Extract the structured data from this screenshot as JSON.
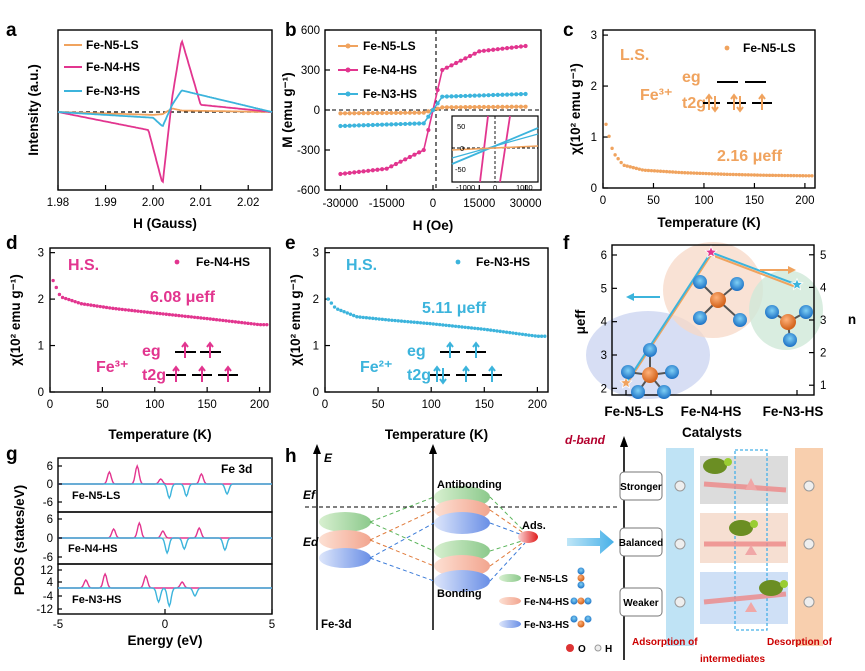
{
  "colors": {
    "ls": "#f0a35e",
    "n4": "#e2358f",
    "n3": "#3cb4dc",
    "dash": "#000000"
  },
  "panels": {
    "a": {
      "label": "a",
      "ylabel": "Intensity (a.u.)",
      "xlabel": "H (Gauss)",
      "xticks": [
        "1.98",
        "1.99",
        "2.00",
        "2.01",
        "2.02"
      ],
      "legend": [
        "Fe-N5-LS",
        "Fe-N4-HS",
        "Fe-N3-HS"
      ]
    },
    "b": {
      "label": "b",
      "ylabel": "M (emu g⁻¹)",
      "xlabel": "H (Oe)",
      "xticks": [
        "-30000",
        "-15000",
        "0",
        "15000",
        "30000"
      ],
      "yticks": [
        "600",
        "300",
        "0",
        "-300",
        "-600"
      ],
      "inset_xticks": [
        "-1000",
        "0",
        "1000"
      ],
      "inset_yticks": [
        "50",
        "0",
        "-50"
      ],
      "legend": [
        "Fe-N5-LS",
        "Fe-N4-HS",
        "Fe-N3-HS"
      ]
    },
    "c": {
      "label": "c",
      "spin": "L.S.",
      "legend": "Fe-N5-LS",
      "ion": "Fe³⁺",
      "eg": "eg",
      "t2g": "t2g",
      "ueff": "2.16 μeff",
      "ylabel": "χ(10² emu g⁻¹)",
      "xlabel": "Temperature (K)",
      "xticks": [
        "0",
        "50",
        "100",
        "150",
        "200"
      ],
      "yticks": [
        "3",
        "2",
        "1",
        "0"
      ]
    },
    "d": {
      "label": "d",
      "spin": "H.S.",
      "legend": "Fe-N4-HS",
      "ion": "Fe³⁺",
      "eg": "eg",
      "t2g": "t2g",
      "ueff": "6.08 μeff",
      "ylabel": "χ(10² emu g⁻¹)",
      "xlabel": "Temperature (K)",
      "xticks": [
        "0",
        "50",
        "100",
        "150",
        "200"
      ],
      "yticks": [
        "3",
        "2",
        "1",
        "0"
      ]
    },
    "e": {
      "label": "e",
      "spin": "H.S.",
      "legend": "Fe-N3-HS",
      "ion": "Fe²⁺",
      "eg": "eg",
      "t2g": "t2g",
      "ueff": "5.11 μeff",
      "ylabel": "χ(10² emu g⁻¹)",
      "xlabel": "Temperature (K)",
      "xticks": [
        "0",
        "50",
        "100",
        "150",
        "200"
      ],
      "yticks": [
        "3",
        "2",
        "1",
        "0"
      ]
    },
    "f": {
      "label": "f",
      "xlabel": "Catalysts",
      "ylabel_left": "μeff",
      "ylabel_right": "n",
      "categories": [
        "Fe-N5-LS",
        "Fe-N4-HS",
        "Fe-N3-HS"
      ],
      "yticks_left": [
        "6",
        "5",
        "4",
        "3",
        "2"
      ],
      "yticks_right": [
        "5",
        "4",
        "3",
        "2",
        "1"
      ]
    },
    "g": {
      "label": "g",
      "title": "Fe 3d",
      "ylabel": "PDOS (states/eV)",
      "xlabel": "Energy (eV)",
      "xticks": [
        "-5",
        "0",
        "5"
      ],
      "sub": [
        "Fe-N5-LS",
        "Fe-N4-HS",
        "Fe-N3-HS"
      ],
      "yticks1": [
        "6",
        "0",
        "-6"
      ],
      "yticks2": [
        "6",
        "0",
        "-6"
      ],
      "yticks3": [
        "12",
        "4",
        "-4",
        "-12"
      ]
    },
    "h": {
      "label": "h",
      "E": "E",
      "Ef": "Ef",
      "Ed": "Ed",
      "fe3d": "Fe-3d",
      "antibonding": "Antibonding",
      "bonding": "Bonding",
      "ads": "Ads.",
      "legend": [
        "Fe-N5-LS",
        "Fe-N4-HS",
        "Fe-N3-HS"
      ],
      "atoms": [
        "O",
        "H"
      ],
      "dband": "d-band",
      "rows": [
        "Stronger",
        "Balanced",
        "Weaker"
      ],
      "bottom_left": "Adsorption of",
      "bottom_right": "Desorption of",
      "bottom_mid": "intermediates"
    }
  },
  "chart_data": [
    {
      "panel": "a",
      "type": "line",
      "title": "",
      "xlabel": "H (Gauss)",
      "ylabel": "Intensity (a.u.)",
      "xlim": [
        1.98,
        2.025
      ],
      "series": [
        {
          "name": "Fe-N5-LS",
          "x": [
            1.98,
            2.0,
            2.002,
            2.004,
            2.006,
            2.025
          ],
          "values": [
            0,
            -0.04,
            -0.03,
            0.05,
            0.02,
            0
          ]
        },
        {
          "name": "Fe-N4-HS",
          "x": [
            1.98,
            1.999,
            2.002,
            2.004,
            2.006,
            2.01,
            2.025
          ],
          "values": [
            0,
            -0.25,
            -1.0,
            0.2,
            1.0,
            0.1,
            0
          ]
        },
        {
          "name": "Fe-N3-HS",
          "x": [
            1.98,
            2.0,
            2.002,
            2.004,
            2.006,
            2.025
          ],
          "values": [
            0,
            -0.08,
            -0.2,
            0.1,
            0.3,
            0
          ]
        }
      ]
    },
    {
      "panel": "b",
      "type": "line",
      "title": "",
      "xlabel": "H (Oe)",
      "ylabel": "M (emu g⁻¹)",
      "xlim": [
        -35000,
        35000
      ],
      "ylim": [
        -600,
        600
      ],
      "series": [
        {
          "name": "Fe-N5-LS",
          "x": [
            -30000,
            -3000,
            0,
            3000,
            30000
          ],
          "values": [
            -25,
            -20,
            0,
            20,
            25
          ]
        },
        {
          "name": "Fe-N4-HS",
          "x": [
            -30000,
            -15000,
            -3000,
            0,
            3000,
            15000,
            30000
          ],
          "values": [
            -480,
            -440,
            -300,
            0,
            300,
            440,
            480
          ]
        },
        {
          "name": "Fe-N3-HS",
          "x": [
            -30000,
            -3000,
            0,
            3000,
            30000
          ],
          "values": [
            -120,
            -100,
            0,
            100,
            120
          ]
        }
      ]
    },
    {
      "panel": "c",
      "type": "scatter",
      "title": "",
      "xlabel": "Temperature (K)",
      "ylabel": "χ(10² emu g⁻¹)",
      "xlim": [
        0,
        210
      ],
      "ylim": [
        0,
        3.1
      ],
      "series": [
        {
          "name": "Fe-N5-LS",
          "x": [
            3,
            10,
            20,
            40,
            80,
            120,
            160,
            200
          ],
          "values": [
            1.25,
            0.7,
            0.45,
            0.35,
            0.3,
            0.27,
            0.25,
            0.24
          ]
        }
      ]
    },
    {
      "panel": "d",
      "type": "scatter",
      "title": "",
      "xlabel": "Temperature (K)",
      "ylabel": "χ(10² emu g⁻¹)",
      "xlim": [
        0,
        210
      ],
      "ylim": [
        0,
        3.1
      ],
      "series": [
        {
          "name": "Fe-N4-HS",
          "x": [
            3,
            10,
            30,
            60,
            100,
            150,
            200
          ],
          "values": [
            2.4,
            2.05,
            1.9,
            1.8,
            1.7,
            1.58,
            1.45
          ]
        }
      ]
    },
    {
      "panel": "e",
      "type": "scatter",
      "title": "",
      "xlabel": "Temperature (K)",
      "ylabel": "χ(10² emu g⁻¹)",
      "xlim": [
        0,
        210
      ],
      "ylim": [
        0,
        3.1
      ],
      "series": [
        {
          "name": "Fe-N3-HS",
          "x": [
            3,
            10,
            30,
            60,
            100,
            150,
            200
          ],
          "values": [
            2.0,
            1.8,
            1.62,
            1.55,
            1.47,
            1.35,
            1.2
          ]
        }
      ]
    },
    {
      "panel": "f",
      "type": "line",
      "title": "",
      "xlabel": "Catalysts",
      "ylabel": "μeff",
      "categories": [
        "Fe-N5-LS",
        "Fe-N4-HS",
        "Fe-N3-HS"
      ],
      "series": [
        {
          "name": "",
          "values": [
            2.16,
            6.08,
            5.11
          ]
        },
        {
          "name": "n",
          "values": [
            1,
            5,
            4
          ]
        }
      ]
    }
  ]
}
